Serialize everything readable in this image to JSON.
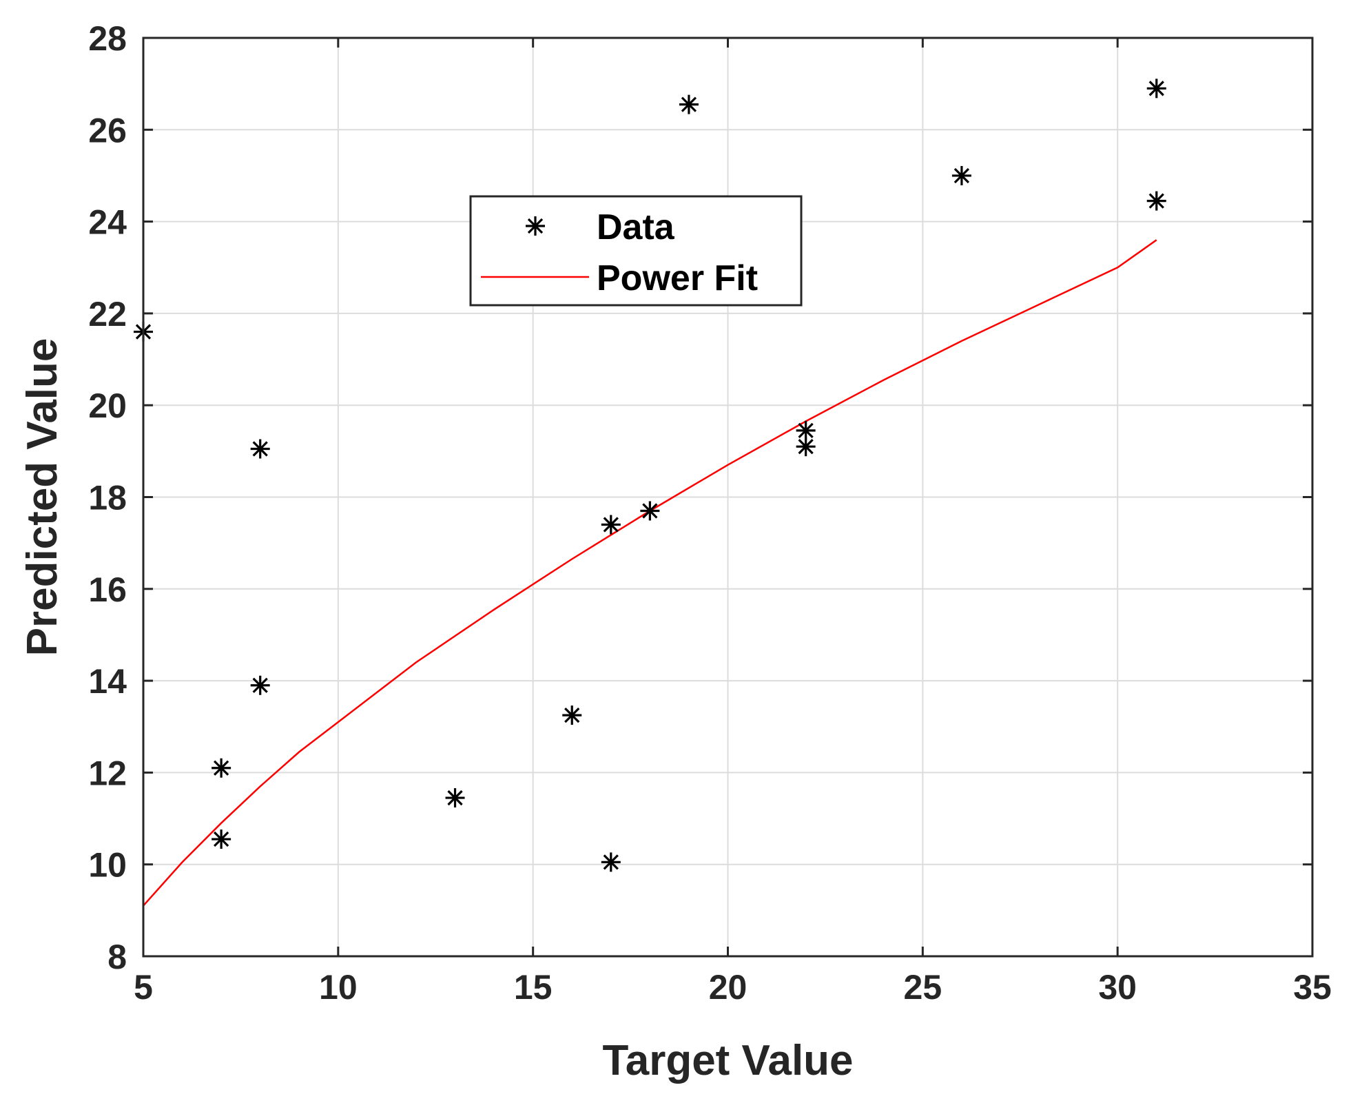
{
  "chart_data": {
    "type": "scatter",
    "xlabel": "Target Value",
    "ylabel": "Predicted Value",
    "xlim": [
      5,
      35
    ],
    "ylim": [
      8,
      28
    ],
    "x_ticks": [
      5,
      10,
      15,
      20,
      25,
      30,
      35
    ],
    "y_ticks": [
      8,
      10,
      12,
      14,
      16,
      18,
      20,
      22,
      24,
      26,
      28
    ],
    "x_tick_labels": [
      "5",
      "10",
      "15",
      "20",
      "25",
      "30",
      "35"
    ],
    "y_tick_labels": [
      "8",
      "10",
      "12",
      "14",
      "16",
      "18",
      "20",
      "22",
      "24",
      "26",
      "28"
    ],
    "grid": true,
    "legend_position": "upper-center",
    "legend": [
      {
        "label": "Data",
        "marker": "asterisk",
        "color": "#000000"
      },
      {
        "label": "Power Fit",
        "marker": "line",
        "color": "#ff0000"
      }
    ],
    "series": [
      {
        "name": "Data",
        "kind": "scatter",
        "color": "#000000",
        "points": [
          {
            "x": 5,
            "y": 21.6
          },
          {
            "x": 7,
            "y": 12.1
          },
          {
            "x": 7,
            "y": 10.55
          },
          {
            "x": 8,
            "y": 19.05
          },
          {
            "x": 8,
            "y": 13.9
          },
          {
            "x": 13,
            "y": 11.45
          },
          {
            "x": 16,
            "y": 13.25
          },
          {
            "x": 17,
            "y": 17.4
          },
          {
            "x": 17,
            "y": 10.05
          },
          {
            "x": 18,
            "y": 17.7
          },
          {
            "x": 19,
            "y": 26.55
          },
          {
            "x": 22,
            "y": 19.45
          },
          {
            "x": 22,
            "y": 19.1
          },
          {
            "x": 26,
            "y": 25.0
          },
          {
            "x": 31,
            "y": 26.9
          },
          {
            "x": 31,
            "y": 24.45
          }
        ]
      },
      {
        "name": "Power Fit",
        "kind": "line",
        "color": "#ff0000",
        "points": [
          {
            "x": 5,
            "y": 9.1
          },
          {
            "x": 6,
            "y": 10.05
          },
          {
            "x": 7,
            "y": 10.9
          },
          {
            "x": 8,
            "y": 11.7
          },
          {
            "x": 9,
            "y": 12.45
          },
          {
            "x": 10,
            "y": 13.1
          },
          {
            "x": 12,
            "y": 14.4
          },
          {
            "x": 14,
            "y": 15.55
          },
          {
            "x": 15,
            "y": 16.1
          },
          {
            "x": 16,
            "y": 16.65
          },
          {
            "x": 18,
            "y": 17.7
          },
          {
            "x": 20,
            "y": 18.7
          },
          {
            "x": 22,
            "y": 19.65
          },
          {
            "x": 24,
            "y": 20.55
          },
          {
            "x": 26,
            "y": 21.4
          },
          {
            "x": 28,
            "y": 22.2
          },
          {
            "x": 30,
            "y": 23.0
          },
          {
            "x": 31,
            "y": 23.6
          }
        ]
      }
    ]
  }
}
